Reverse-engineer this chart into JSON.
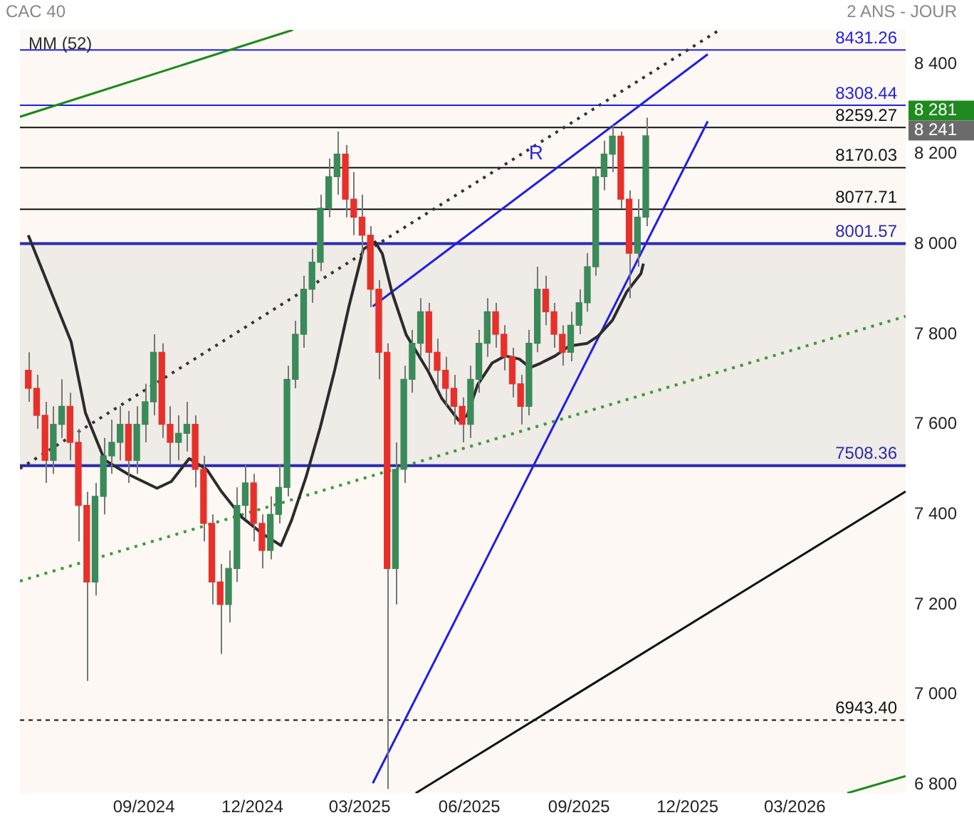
{
  "chart_data": {
    "type": "candlestick",
    "title": "CAC 40",
    "subtitle": "2 ANS - JOUR",
    "x": [
      "2024-05-27",
      "2024-06-03",
      "2024-06-10",
      "2024-06-17",
      "2024-06-24",
      "2024-07-01",
      "2024-07-08",
      "2024-07-15",
      "2024-07-22",
      "2024-07-29",
      "2024-08-05",
      "2024-08-12",
      "2024-08-19",
      "2024-08-26",
      "2024-09-02",
      "2024-09-09",
      "2024-09-16",
      "2024-09-23",
      "2024-09-30",
      "2024-10-07",
      "2024-10-14",
      "2024-10-21",
      "2024-10-28",
      "2024-11-04",
      "2024-11-11",
      "2024-11-18",
      "2024-11-25",
      "2024-12-02",
      "2024-12-09",
      "2024-12-16",
      "2024-12-23",
      "2024-12-30",
      "2025-01-06",
      "2025-01-13",
      "2025-01-20",
      "2025-01-27",
      "2025-02-03",
      "2025-02-10",
      "2025-02-17",
      "2025-02-24",
      "2025-03-03",
      "2025-03-10",
      "2025-03-17",
      "2025-03-24",
      "2025-03-31",
      "2025-04-07",
      "2025-04-14",
      "2025-04-21",
      "2025-04-28",
      "2025-05-05",
      "2025-05-12",
      "2025-05-19",
      "2025-05-26",
      "2025-06-02",
      "2025-06-09",
      "2025-06-16",
      "2025-06-23",
      "2025-06-30",
      "2025-07-07",
      "2025-07-14",
      "2025-07-21",
      "2025-07-28",
      "2025-08-04",
      "2025-08-11",
      "2025-08-18",
      "2025-08-25",
      "2025-09-01",
      "2025-09-08",
      "2025-09-15",
      "2025-09-22",
      "2025-09-29",
      "2025-10-06",
      "2025-10-13",
      "2025-10-20",
      "2025-10-27"
    ],
    "ohlc": [
      [
        7720,
        7760,
        7650,
        7680
      ],
      [
        7680,
        7710,
        7590,
        7620
      ],
      [
        7620,
        7650,
        7470,
        7520
      ],
      [
        7520,
        7640,
        7490,
        7600
      ],
      [
        7600,
        7700,
        7570,
        7640
      ],
      [
        7640,
        7670,
        7520,
        7560
      ],
      [
        7560,
        7590,
        7340,
        7420
      ],
      [
        7420,
        7450,
        7030,
        7250
      ],
      [
        7250,
        7470,
        7220,
        7440
      ],
      [
        7440,
        7570,
        7400,
        7530
      ],
      [
        7530,
        7610,
        7490,
        7560
      ],
      [
        7560,
        7640,
        7520,
        7600
      ],
      [
        7600,
        7630,
        7470,
        7520
      ],
      [
        7520,
        7640,
        7490,
        7600
      ],
      [
        7600,
        7690,
        7560,
        7650
      ],
      [
        7650,
        7800,
        7620,
        7760
      ],
      [
        7760,
        7780,
        7570,
        7600
      ],
      [
        7600,
        7640,
        7510,
        7560
      ],
      [
        7560,
        7620,
        7520,
        7580
      ],
      [
        7580,
        7650,
        7540,
        7600
      ],
      [
        7600,
        7620,
        7460,
        7500
      ],
      [
        7500,
        7530,
        7340,
        7380
      ],
      [
        7380,
        7400,
        7200,
        7250
      ],
      [
        7250,
        7290,
        7090,
        7200
      ],
      [
        7200,
        7320,
        7160,
        7280
      ],
      [
        7280,
        7460,
        7250,
        7420
      ],
      [
        7420,
        7510,
        7390,
        7470
      ],
      [
        7470,
        7490,
        7340,
        7380
      ],
      [
        7380,
        7400,
        7280,
        7320
      ],
      [
        7320,
        7440,
        7300,
        7400
      ],
      [
        7400,
        7510,
        7380,
        7460
      ],
      [
        7460,
        7730,
        7440,
        7700
      ],
      [
        7700,
        7830,
        7680,
        7800
      ],
      [
        7800,
        7930,
        7770,
        7900
      ],
      [
        7900,
        7990,
        7870,
        7960
      ],
      [
        7960,
        8110,
        7940,
        8080
      ],
      [
        8080,
        8190,
        8060,
        8150
      ],
      [
        8150,
        8250,
        8110,
        8200
      ],
      [
        8200,
        8220,
        8060,
        8100
      ],
      [
        8100,
        8160,
        8020,
        8060
      ],
      [
        8060,
        8110,
        7970,
        8020
      ],
      [
        8020,
        8040,
        7860,
        7900
      ],
      [
        7900,
        7920,
        7700,
        7760
      ],
      [
        7760,
        7780,
        6790,
        7280
      ],
      [
        7280,
        7560,
        7200,
        7500
      ],
      [
        7500,
        7730,
        7470,
        7700
      ],
      [
        7700,
        7810,
        7670,
        7780
      ],
      [
        7780,
        7880,
        7750,
        7850
      ],
      [
        7850,
        7870,
        7720,
        7760
      ],
      [
        7760,
        7790,
        7680,
        7720
      ],
      [
        7720,
        7750,
        7640,
        7680
      ],
      [
        7680,
        7710,
        7600,
        7640
      ],
      [
        7640,
        7660,
        7560,
        7600
      ],
      [
        7600,
        7730,
        7570,
        7700
      ],
      [
        7700,
        7810,
        7670,
        7780
      ],
      [
        7780,
        7880,
        7750,
        7850
      ],
      [
        7850,
        7870,
        7770,
        7800
      ],
      [
        7800,
        7820,
        7720,
        7750
      ],
      [
        7750,
        7770,
        7660,
        7690
      ],
      [
        7690,
        7710,
        7600,
        7640
      ],
      [
        7640,
        7810,
        7620,
        7780
      ],
      [
        7780,
        7950,
        7760,
        7900
      ],
      [
        7900,
        7930,
        7820,
        7850
      ],
      [
        7850,
        7870,
        7770,
        7800
      ],
      [
        7800,
        7820,
        7730,
        7760
      ],
      [
        7760,
        7850,
        7740,
        7820
      ],
      [
        7820,
        7900,
        7800,
        7870
      ],
      [
        7870,
        7980,
        7850,
        7950
      ],
      [
        7950,
        8170,
        7930,
        8150
      ],
      [
        8150,
        8230,
        8120,
        8200
      ],
      [
        8200,
        8265,
        8160,
        8240
      ],
      [
        8240,
        8250,
        8080,
        8100
      ],
      [
        8100,
        8120,
        7880,
        7980
      ],
      [
        7980,
        8100,
        7950,
        8060
      ],
      [
        8060,
        8281,
        8040,
        8241
      ]
    ],
    "series": [
      {
        "type": "line",
        "name": "MM (52)",
        "color": "#2b2b2b",
        "x": [
          "2024-05-27",
          "2024-06-20",
          "2024-07-02",
          "2024-07-14",
          "2024-07-30",
          "2024-08-19",
          "2024-09-12",
          "2024-09-24",
          "2024-10-09",
          "2024-10-24",
          "2024-11-05",
          "2024-11-22",
          "2024-12-10",
          "2024-12-25",
          "2025-01-03",
          "2025-01-15",
          "2025-01-27",
          "2025-02-08",
          "2025-02-20",
          "2025-03-04",
          "2025-03-14",
          "2025-03-20",
          "2025-03-28",
          "2025-04-09",
          "2025-04-27",
          "2025-05-09",
          "2025-05-23",
          "2025-05-30",
          "2025-06-08",
          "2025-06-20",
          "2025-07-01",
          "2025-07-13",
          "2025-07-22",
          "2025-07-31",
          "2025-08-12",
          "2025-08-24",
          "2025-09-08",
          "2025-09-17",
          "2025-09-29",
          "2025-10-11",
          "2025-10-23",
          "2025-10-25"
        ],
        "values": [
          8020,
          7862,
          7783,
          7625,
          7521,
          7489,
          7458,
          7473,
          7524,
          7499,
          7451,
          7394,
          7356,
          7331,
          7388,
          7483,
          7594,
          7720,
          7862,
          7989,
          8005,
          7979,
          7894,
          7799,
          7720,
          7657,
          7609,
          7619,
          7688,
          7736,
          7752,
          7745,
          7726,
          7736,
          7752,
          7774,
          7780,
          7796,
          7831,
          7894,
          7935,
          7957
        ]
      },
      {
        "type": "line",
        "color": "#1a8a1a",
        "x": [
          "2024-05-20",
          "2025-01-04"
        ],
        "values": [
          8283,
          8476
        ]
      },
      {
        "type": "line",
        "color": "#1a8a1a",
        "x": [
          "2026-04-14",
          "2026-06-02"
        ],
        "values": [
          6781,
          6819
        ]
      },
      {
        "type": "line",
        "color": "#333333",
        "line_style": "dotted",
        "x": [
          "2024-05-20",
          "2025-12-28"
        ],
        "values": [
          7502,
          8476
        ]
      },
      {
        "type": "line",
        "color": "#3a9a3a",
        "line_style": "dotted",
        "x": [
          "2024-05-20",
          "2026-06-02"
        ],
        "values": [
          7252,
          7840
        ]
      },
      {
        "type": "line",
        "color": "#111111",
        "x": [
          "2025-04-17",
          "2026-06-02"
        ],
        "values": [
          6781,
          7451
        ]
      },
      {
        "type": "line",
        "color": "#1f1fe8",
        "x": [
          "2025-03-12",
          "2025-12-18"
        ],
        "values": [
          6803,
          8273
        ]
      },
      {
        "type": "line",
        "color": "#1f1fe8",
        "x": [
          "2025-03-12",
          "2025-12-18"
        ],
        "values": [
          7862,
          8422
        ]
      }
    ],
    "bands": [
      {
        "axis": "y",
        "from": 7508.36,
        "to": 8001.57,
        "color": "#efebe6"
      }
    ],
    "ref_lines": [
      {
        "axis": "y",
        "value": 8431.26,
        "label": "8431.26",
        "color": "#1f1fe8"
      },
      {
        "axis": "y",
        "value": 8308.44,
        "label": "8308.44",
        "color": "#1f1fe8"
      },
      {
        "axis": "y",
        "value": 8259.27,
        "label": "8259.27",
        "color": "#111111"
      },
      {
        "axis": "y",
        "value": 8170.03,
        "label": "8170.03",
        "color": "#111111"
      },
      {
        "axis": "y",
        "value": 8077.71,
        "label": "8077.71",
        "color": "#111111"
      },
      {
        "axis": "y",
        "value": 8001.57,
        "label": "8001.57",
        "color": "#2a2ab0"
      },
      {
        "axis": "y",
        "value": 7508.36,
        "label": "7508.36",
        "color": "#2a2ab0"
      },
      {
        "axis": "y",
        "value": 6943.4,
        "label": "6943.40",
        "color": "#111111",
        "line_style": "dashed"
      }
    ],
    "annotations": [
      {
        "text": "R",
        "x": "2025-07-27",
        "y": 8200
      },
      "8 281",
      "8 241"
    ],
    "legend": "top left",
    "xlim": [
      "2024-05-20",
      "2026-06-02"
    ],
    "xticks": [
      {
        "value": "2024-09-01",
        "label": "09/2024"
      },
      {
        "value": "2024-12-01",
        "label": "12/2024"
      },
      {
        "value": "2025-03-01",
        "label": "03/2025"
      },
      {
        "value": "2025-06-01",
        "label": "06/2025"
      },
      {
        "value": "2025-09-01",
        "label": "09/2025"
      },
      {
        "value": "2025-12-01",
        "label": "12/2025"
      },
      {
        "value": "2026-03-01",
        "label": "03/2026"
      }
    ],
    "ylim": [
      6781,
      8476
    ],
    "yticks": [
      {
        "value": 6800,
        "label": "6 800"
      },
      {
        "value": 7000,
        "label": "7 000"
      },
      {
        "value": 7200,
        "label": "7 200"
      },
      {
        "value": 7400,
        "label": "7 400"
      },
      {
        "value": 7600,
        "label": "7 600"
      },
      {
        "value": 7800,
        "label": "7 800"
      },
      {
        "value": 8000,
        "label": "8 000"
      },
      {
        "value": 8200,
        "label": "8 200"
      },
      {
        "value": 8400,
        "label": "8 400"
      }
    ]
  }
}
